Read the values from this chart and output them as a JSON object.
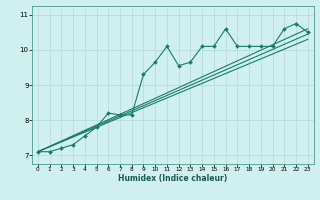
{
  "xlabel": "Humidex (Indice chaleur)",
  "background_color": "#cff0ee",
  "grid_color": "#b8ddd8",
  "line_color": "#1a7a6a",
  "xlim": [
    -0.5,
    23.5
  ],
  "ylim": [
    6.75,
    11.25
  ],
  "xticks": [
    0,
    1,
    2,
    3,
    4,
    5,
    6,
    7,
    8,
    9,
    10,
    11,
    12,
    13,
    14,
    15,
    16,
    17,
    18,
    19,
    20,
    21,
    22,
    23
  ],
  "yticks": [
    7,
    8,
    9,
    10,
    11
  ],
  "main_x": [
    0,
    1,
    2,
    3,
    4,
    5,
    6,
    7,
    8,
    9,
    10,
    11,
    12,
    13,
    14,
    15,
    16,
    17,
    18,
    19,
    20,
    21,
    22,
    23
  ],
  "main_y": [
    7.1,
    7.1,
    7.2,
    7.3,
    7.55,
    7.8,
    8.2,
    8.15,
    8.15,
    9.3,
    9.65,
    10.1,
    9.55,
    9.65,
    10.1,
    10.1,
    10.6,
    10.1,
    10.1,
    10.1,
    10.1,
    10.6,
    10.75,
    10.5
  ],
  "line2_x": [
    0,
    23
  ],
  "line2_y": [
    7.1,
    10.6
  ],
  "line3_x": [
    0,
    23
  ],
  "line3_y": [
    7.1,
    10.45
  ],
  "line4_x": [
    0,
    23
  ],
  "line4_y": [
    7.1,
    10.3
  ]
}
